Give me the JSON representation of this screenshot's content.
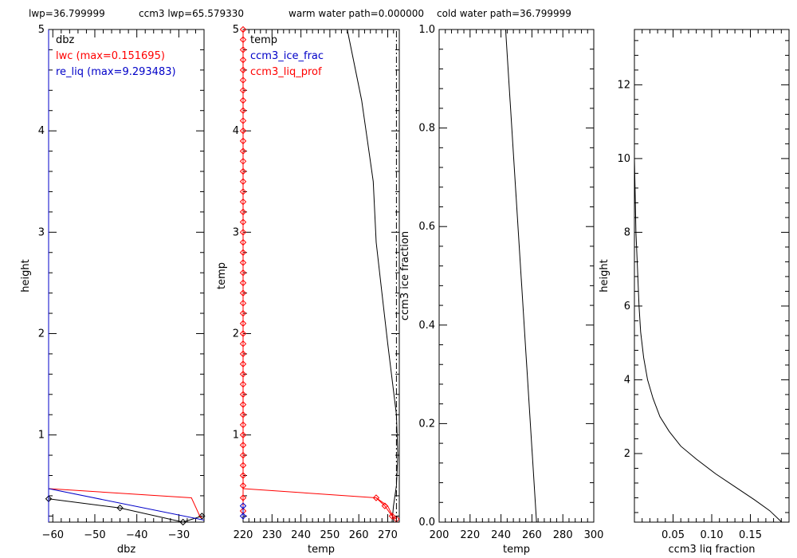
{
  "header": {
    "lwp": "lwp=36.799999",
    "ccm3_lwp": "ccm3 lwp=65.579330",
    "warm_water_path": "warm water path=0.000000",
    "cold_water_path": "cold water path=36.799999"
  },
  "chart_data": [
    {
      "type": "line",
      "xlabel": "dbz",
      "ylabel": "height",
      "xlim": [
        -61,
        -24
      ],
      "ylim": [
        0.14,
        5.0
      ],
      "xticks": [
        -60,
        -50,
        -40,
        -30
      ],
      "xtick_labels": [
        "−60",
        "−50",
        "−40",
        "−30"
      ],
      "yticks": [
        1,
        2,
        3,
        4,
        5
      ],
      "ytick_labels": [
        "1",
        "2",
        "3",
        "4",
        "5"
      ],
      "legend": [
        "dbz",
        "lwc (max=0.151695)",
        "re_liq (max=9.293483)"
      ],
      "legend_colors": [
        "#000000",
        "#ff0000",
        "#0000c8"
      ],
      "series": [
        {
          "name": "dbz",
          "color": "#000000",
          "marker": "diamond",
          "x": [
            -61,
            -44,
            -29,
            -24.5
          ],
          "y": [
            0.37,
            0.28,
            0.14,
            0.2
          ]
        },
        {
          "name": "lwc (max=0.151695)",
          "color": "#ff0000",
          "x": [
            -61,
            -27,
            -25,
            -24.5
          ],
          "y": [
            0.47,
            0.38,
            0.2,
            0.18
          ]
        },
        {
          "name": "re_liq (max=9.293483)",
          "color": "#0000c8",
          "x": [
            -61,
            -24
          ],
          "y": [
            0.47,
            0.16
          ]
        },
        {
          "color": "#0000c8",
          "x": [
            -61,
            -61
          ],
          "y": [
            0.14,
            5.0
          ]
        }
      ]
    },
    {
      "type": "line",
      "xlabel": "temp",
      "ylabel": "temp",
      "xlim": [
        220,
        274
      ],
      "ylim": [
        0.14,
        5.0
      ],
      "xticks": [
        220,
        230,
        240,
        250,
        260,
        270
      ],
      "xtick_labels": [
        "220",
        "230",
        "240",
        "250",
        "260",
        "270"
      ],
      "yticks": [
        1,
        2,
        3,
        4,
        5
      ],
      "ytick_labels": [
        "1",
        "2",
        "3",
        "4",
        "5"
      ],
      "legend": [
        "temp",
        "ccm3_ice_frac",
        "ccm3_liq_prof"
      ],
      "legend_colors": [
        "#000000",
        "#0000c8",
        "#ff0000"
      ],
      "series": [
        {
          "name": "temp",
          "color": "#000000",
          "x": [
            256,
            261,
            263,
            265,
            266,
            268,
            270,
            273,
            273.5,
            273,
            272,
            271.5
          ],
          "y": [
            5.0,
            4.3,
            3.9,
            3.5,
            2.9,
            2.4,
            1.9,
            1.2,
            0.8,
            0.5,
            0.3,
            0.14
          ]
        },
        {
          "name": "ccm3_liq_prof",
          "color": "#ff0000",
          "x": [
            220,
            266,
            270,
            272
          ],
          "y": [
            0.47,
            0.38,
            0.3,
            0.18
          ]
        },
        {
          "name": "ccm3_liq_prof",
          "color": "#ff0000",
          "marker": "diamond",
          "x": [
            220,
            220,
            220,
            220,
            220,
            220,
            220,
            220,
            220,
            220,
            220,
            220,
            220,
            220,
            220,
            220,
            220,
            220,
            220,
            220,
            220,
            220,
            220,
            220,
            220,
            220,
            220,
            220,
            220,
            220,
            220,
            220,
            220,
            220,
            220,
            220,
            220,
            220,
            220,
            220,
            220,
            220,
            220,
            220,
            220,
            220,
            220,
            220
          ],
          "y": [
            0.5,
            0.6,
            0.7,
            0.8,
            0.9,
            1.0,
            1.1,
            1.2,
            1.3,
            1.4,
            1.5,
            1.6,
            1.7,
            1.8,
            1.9,
            2.0,
            2.1,
            2.2,
            2.3,
            2.4,
            2.5,
            2.6,
            2.7,
            2.8,
            2.9,
            3.0,
            3.1,
            3.2,
            3.3,
            3.4,
            3.5,
            3.6,
            3.7,
            3.8,
            3.9,
            4.0,
            4.1,
            4.2,
            4.3,
            4.4,
            4.5,
            4.6,
            4.7,
            4.8,
            4.9,
            5.0,
            0.38,
            0.25
          ]
        },
        {
          "name": "ccm3_liq_prof",
          "color": "#ff0000",
          "marker": "diamond",
          "x": [
            266,
            269,
            271.5,
            273
          ],
          "y": [
            0.38,
            0.3,
            0.2,
            0.17
          ]
        },
        {
          "name": "ccm3_ice_frac",
          "color": "#0000c8",
          "marker": "diamond",
          "x": [
            220,
            220
          ],
          "y": [
            0.2,
            0.3
          ]
        },
        {
          "color": "#000000",
          "dash": "dashdot",
          "x": [
            273,
            273
          ],
          "y": [
            0.14,
            5.0
          ]
        }
      ]
    },
    {
      "type": "line",
      "xlabel": "temp",
      "ylabel": "ccm3 ice fraction",
      "xlim": [
        200,
        300
      ],
      "ylim": [
        0,
        1
      ],
      "xticks": [
        200,
        220,
        240,
        260,
        280,
        300
      ],
      "xtick_labels": [
        "200",
        "220",
        "240",
        "260",
        "280",
        "300"
      ],
      "yticks": [
        0,
        0.2,
        0.4,
        0.6,
        0.8,
        1.0
      ],
      "ytick_labels": [
        "0.0",
        "0.2",
        "0.4",
        "0.6",
        "0.8",
        "1.0"
      ],
      "series": [
        {
          "color": "#000000",
          "x": [
            243,
            263
          ],
          "y": [
            1.0,
            0.0
          ]
        }
      ]
    },
    {
      "type": "line",
      "xlabel": "ccm3 liq fraction",
      "ylabel": "height",
      "xlim": [
        0,
        0.2
      ],
      "ylim": [
        0.14,
        13.5
      ],
      "xticks": [
        0.05,
        0.1,
        0.15
      ],
      "xtick_labels": [
        "0.05",
        "0.10",
        "0.15"
      ],
      "yticks": [
        2,
        4,
        6,
        8,
        10,
        12
      ],
      "ytick_labels": [
        "2",
        "4",
        "6",
        "8",
        "10",
        "12"
      ],
      "series": [
        {
          "color": "#000000",
          "x": [
            0.0,
            0.001,
            0.002,
            0.004,
            0.006,
            0.008,
            0.012,
            0.017,
            0.024,
            0.033,
            0.045,
            0.06,
            0.08,
            0.105,
            0.13,
            0.155,
            0.175,
            0.19
          ],
          "y": [
            10.0,
            9.0,
            8.0,
            7.0,
            6.0,
            5.3,
            4.6,
            4.0,
            3.5,
            3.0,
            2.6,
            2.2,
            1.85,
            1.45,
            1.1,
            0.75,
            0.45,
            0.15
          ]
        }
      ]
    }
  ]
}
